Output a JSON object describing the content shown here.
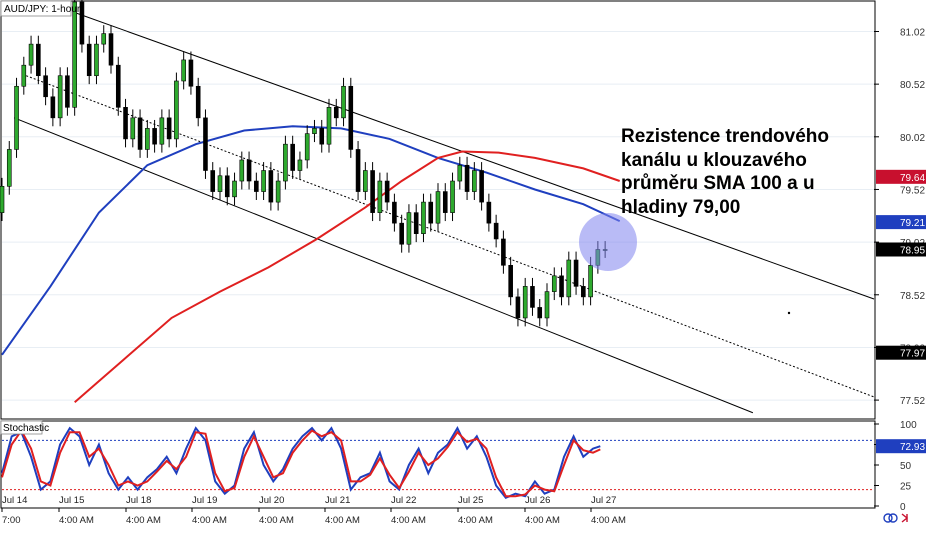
{
  "chart_title": "AUD/JPY: 1-hour",
  "annotation": {
    "lines": [
      "Rezistence trendového",
      "kanálu u klouzavého",
      "průměru SMA 100 a u",
      "hladiny 79,00"
    ]
  },
  "chart_data": [
    {
      "type": "candlestick",
      "title": "AUD/JPY: 1-hour",
      "y_ticks": [
        "81.02",
        "80.52",
        "80.02",
        "79.52",
        "79.02",
        "78.52",
        "78.02",
        "77.52"
      ],
      "x_date_labels": [
        "Jul 14",
        "Jul 15",
        "Jul 18",
        "Jul 19",
        "Jul 20",
        "Jul 21",
        "Jul 22",
        "Jul 25",
        "Jul 26",
        "Jul 27"
      ],
      "x_time_labels": [
        "7:00",
        "4:00 AM",
        "4:00 AM",
        "4:00 AM",
        "4:00 AM",
        "4:00 AM",
        "4:00 AM",
        "4:00 AM",
        "4:00 AM",
        "4:00 AM"
      ],
      "ylim": [
        77.35,
        81.3
      ],
      "price_boxes": [
        {
          "label": "79.64",
          "value": 79.64,
          "color": "#c8102e"
        },
        {
          "label": "79.21",
          "value": 79.21,
          "color": "#1f3fbf"
        },
        {
          "label": "78.95",
          "value": 78.95,
          "color": "#000000"
        },
        {
          "label": "77.97",
          "value": 77.97,
          "color": "#000000"
        }
      ],
      "sma100": {
        "color": "#1f3fbf",
        "points": [
          [
            0,
            77.95
          ],
          [
            20,
            78.6
          ],
          [
            40,
            79.3
          ],
          [
            60,
            79.75
          ],
          [
            80,
            79.95
          ],
          [
            100,
            80.08
          ],
          [
            120,
            80.12
          ],
          [
            140,
            80.1
          ],
          [
            160,
            80.0
          ],
          [
            180,
            79.82
          ],
          [
            200,
            79.68
          ],
          [
            220,
            79.52
          ],
          [
            240,
            79.38
          ],
          [
            255,
            79.22
          ]
        ]
      },
      "sma200": {
        "color": "#e02020",
        "points": [
          [
            30,
            77.5
          ],
          [
            50,
            77.9
          ],
          [
            70,
            78.3
          ],
          [
            90,
            78.55
          ],
          [
            110,
            78.78
          ],
          [
            130,
            79.05
          ],
          [
            150,
            79.35
          ],
          [
            165,
            79.6
          ],
          [
            180,
            79.82
          ],
          [
            190,
            79.88
          ],
          [
            205,
            79.87
          ],
          [
            220,
            79.82
          ],
          [
            240,
            79.72
          ],
          [
            255,
            79.6
          ]
        ]
      },
      "channel": {
        "upper": [
          [
            30,
            81.2
          ],
          [
            360,
            78.48
          ]
        ],
        "middle": [
          [
            10,
            80.6
          ],
          [
            360,
            77.55
          ]
        ],
        "lower": [
          [
            5,
            80.2
          ],
          [
            310,
            77.4
          ]
        ]
      },
      "candles": [
        [
          0,
          79.3,
          79.55
        ],
        [
          3,
          79.55,
          79.9
        ],
        [
          6,
          79.9,
          80.5
        ],
        [
          9,
          80.5,
          80.7
        ],
        [
          12,
          80.7,
          80.9
        ],
        [
          15,
          80.9,
          80.6
        ],
        [
          18,
          80.6,
          80.4
        ],
        [
          21,
          80.4,
          80.2
        ],
        [
          24,
          80.2,
          80.6
        ],
        [
          27,
          80.6,
          80.3
        ],
        [
          30,
          80.3,
          81.3
        ],
        [
          33,
          81.3,
          80.9
        ],
        [
          36,
          80.9,
          80.6
        ],
        [
          39,
          80.6,
          80.9
        ],
        [
          42,
          80.9,
          81.0
        ],
        [
          45,
          81.0,
          80.7
        ],
        [
          48,
          80.7,
          80.3
        ],
        [
          51,
          80.3,
          80.0
        ],
        [
          54,
          80.0,
          80.2
        ],
        [
          57,
          80.2,
          79.9
        ],
        [
          60,
          79.9,
          80.1
        ],
        [
          63,
          80.1,
          79.95
        ],
        [
          66,
          79.95,
          80.2
        ],
        [
          69,
          80.2,
          80.0
        ],
        [
          72,
          80.0,
          80.55
        ],
        [
          75,
          80.55,
          80.75
        ],
        [
          78,
          80.75,
          80.5
        ],
        [
          81,
          80.5,
          80.2
        ],
        [
          84,
          80.2,
          79.7
        ],
        [
          87,
          79.7,
          79.5
        ],
        [
          90,
          79.5,
          79.65
        ],
        [
          93,
          79.65,
          79.45
        ],
        [
          96,
          79.45,
          79.6
        ],
        [
          99,
          79.6,
          79.8
        ],
        [
          102,
          79.8,
          79.6
        ],
        [
          105,
          79.6,
          79.5
        ],
        [
          108,
          79.5,
          79.7
        ],
        [
          111,
          79.7,
          79.4
        ],
        [
          114,
          79.4,
          79.6
        ],
        [
          117,
          79.6,
          79.95
        ],
        [
          120,
          79.95,
          79.7
        ],
        [
          123,
          79.7,
          79.8
        ],
        [
          126,
          79.8,
          80.05
        ],
        [
          129,
          80.05,
          80.1
        ],
        [
          132,
          80.1,
          79.95
        ],
        [
          135,
          79.95,
          80.3
        ],
        [
          138,
          80.3,
          80.2
        ],
        [
          141,
          80.2,
          80.5
        ],
        [
          144,
          80.5,
          79.9
        ],
        [
          147,
          79.9,
          79.5
        ],
        [
          150,
          79.5,
          79.7
        ],
        [
          153,
          79.7,
          79.3
        ],
        [
          156,
          79.3,
          79.6
        ],
        [
          159,
          79.6,
          79.4
        ],
        [
          162,
          79.4,
          79.2
        ],
        [
          165,
          79.2,
          79.0
        ],
        [
          168,
          79.0,
          79.3
        ],
        [
          171,
          79.3,
          79.1
        ],
        [
          174,
          79.1,
          79.4
        ],
        [
          177,
          79.4,
          79.2
        ],
        [
          180,
          79.2,
          79.5
        ],
        [
          183,
          79.5,
          79.3
        ],
        [
          186,
          79.3,
          79.6
        ],
        [
          189,
          79.6,
          79.75
        ],
        [
          192,
          79.75,
          79.5
        ],
        [
          195,
          79.5,
          79.7
        ],
        [
          198,
          79.7,
          79.4
        ],
        [
          201,
          79.4,
          79.2
        ],
        [
          204,
          79.2,
          79.05
        ],
        [
          207,
          79.05,
          78.8
        ],
        [
          210,
          78.8,
          78.5
        ],
        [
          213,
          78.5,
          78.3
        ],
        [
          216,
          78.3,
          78.6
        ],
        [
          219,
          78.6,
          78.4
        ],
        [
          222,
          78.4,
          78.3
        ],
        [
          225,
          78.3,
          78.55
        ],
        [
          228,
          78.55,
          78.7
        ],
        [
          231,
          78.7,
          78.5
        ],
        [
          234,
          78.5,
          78.85
        ],
        [
          237,
          78.85,
          78.6
        ],
        [
          240,
          78.6,
          78.5
        ],
        [
          243,
          78.5,
          78.8
        ],
        [
          246,
          78.8,
          78.95
        ],
        [
          249,
          78.95,
          78.95
        ]
      ]
    },
    {
      "type": "line",
      "title": "Stochastic",
      "y_ticks": [
        "100",
        "75",
        "50",
        "25",
        "0"
      ],
      "ylim": [
        0,
        100
      ],
      "levels": [
        80,
        20
      ],
      "price_box": {
        "label": "72.93",
        "value": 72.93,
        "color": "#1f3fbf"
      },
      "series": [
        {
          "color": "#1f3fbf",
          "points": [
            [
              0,
              40
            ],
            [
              4,
              85
            ],
            [
              8,
              90
            ],
            [
              12,
              60
            ],
            [
              16,
              20
            ],
            [
              20,
              30
            ],
            [
              24,
              75
            ],
            [
              28,
              95
            ],
            [
              32,
              85
            ],
            [
              36,
              50
            ],
            [
              40,
              75
            ],
            [
              44,
              40
            ],
            [
              48,
              20
            ],
            [
              52,
              35
            ],
            [
              56,
              20
            ],
            [
              60,
              35
            ],
            [
              64,
              45
            ],
            [
              68,
              60
            ],
            [
              72,
              40
            ],
            [
              76,
              70
            ],
            [
              80,
              95
            ],
            [
              84,
              80
            ],
            [
              88,
              30
            ],
            [
              92,
              15
            ],
            [
              96,
              25
            ],
            [
              100,
              70
            ],
            [
              104,
              90
            ],
            [
              108,
              50
            ],
            [
              112,
              30
            ],
            [
              116,
              45
            ],
            [
              120,
              70
            ],
            [
              124,
              85
            ],
            [
              128,
              95
            ],
            [
              132,
              80
            ],
            [
              136,
              95
            ],
            [
              140,
              70
            ],
            [
              144,
              20
            ],
            [
              148,
              35
            ],
            [
              152,
              40
            ],
            [
              156,
              65
            ],
            [
              160,
              30
            ],
            [
              164,
              20
            ],
            [
              168,
              50
            ],
            [
              172,
              70
            ],
            [
              176,
              40
            ],
            [
              180,
              65
            ],
            [
              184,
              75
            ],
            [
              188,
              95
            ],
            [
              192,
              70
            ],
            [
              196,
              85
            ],
            [
              200,
              60
            ],
            [
              204,
              25
            ],
            [
              208,
              10
            ],
            [
              212,
              15
            ],
            [
              216,
              12
            ],
            [
              220,
              30
            ],
            [
              224,
              15
            ],
            [
              228,
              20
            ],
            [
              232,
              60
            ],
            [
              236,
              85
            ],
            [
              240,
              60
            ],
            [
              244,
              70
            ],
            [
              247,
              72.93
            ]
          ]
        },
        {
          "color": "#e02020",
          "points": [
            [
              0,
              35
            ],
            [
              4,
              75
            ],
            [
              8,
              92
            ],
            [
              12,
              70
            ],
            [
              16,
              30
            ],
            [
              20,
              25
            ],
            [
              24,
              65
            ],
            [
              28,
              90
            ],
            [
              32,
              90
            ],
            [
              36,
              60
            ],
            [
              40,
              70
            ],
            [
              44,
              50
            ],
            [
              48,
              25
            ],
            [
              52,
              30
            ],
            [
              56,
              25
            ],
            [
              60,
              30
            ],
            [
              64,
              42
            ],
            [
              68,
              55
            ],
            [
              72,
              45
            ],
            [
              76,
              60
            ],
            [
              80,
              90
            ],
            [
              84,
              88
            ],
            [
              88,
              40
            ],
            [
              92,
              18
            ],
            [
              96,
              22
            ],
            [
              100,
              60
            ],
            [
              104,
              85
            ],
            [
              108,
              60
            ],
            [
              112,
              35
            ],
            [
              116,
              40
            ],
            [
              120,
              65
            ],
            [
              124,
              80
            ],
            [
              128,
              92
            ],
            [
              132,
              85
            ],
            [
              136,
              90
            ],
            [
              140,
              80
            ],
            [
              144,
              30
            ],
            [
              148,
              30
            ],
            [
              152,
              38
            ],
            [
              156,
              58
            ],
            [
              160,
              38
            ],
            [
              164,
              22
            ],
            [
              168,
              42
            ],
            [
              172,
              65
            ],
            [
              176,
              50
            ],
            [
              180,
              58
            ],
            [
              184,
              72
            ],
            [
              188,
              90
            ],
            [
              192,
              78
            ],
            [
              196,
              82
            ],
            [
              200,
              70
            ],
            [
              204,
              35
            ],
            [
              208,
              12
            ],
            [
              212,
              12
            ],
            [
              216,
              14
            ],
            [
              220,
              25
            ],
            [
              224,
              20
            ],
            [
              228,
              18
            ],
            [
              232,
              50
            ],
            [
              236,
              80
            ],
            [
              240,
              68
            ],
            [
              244,
              65
            ],
            [
              247,
              69
            ]
          ]
        }
      ]
    }
  ]
}
